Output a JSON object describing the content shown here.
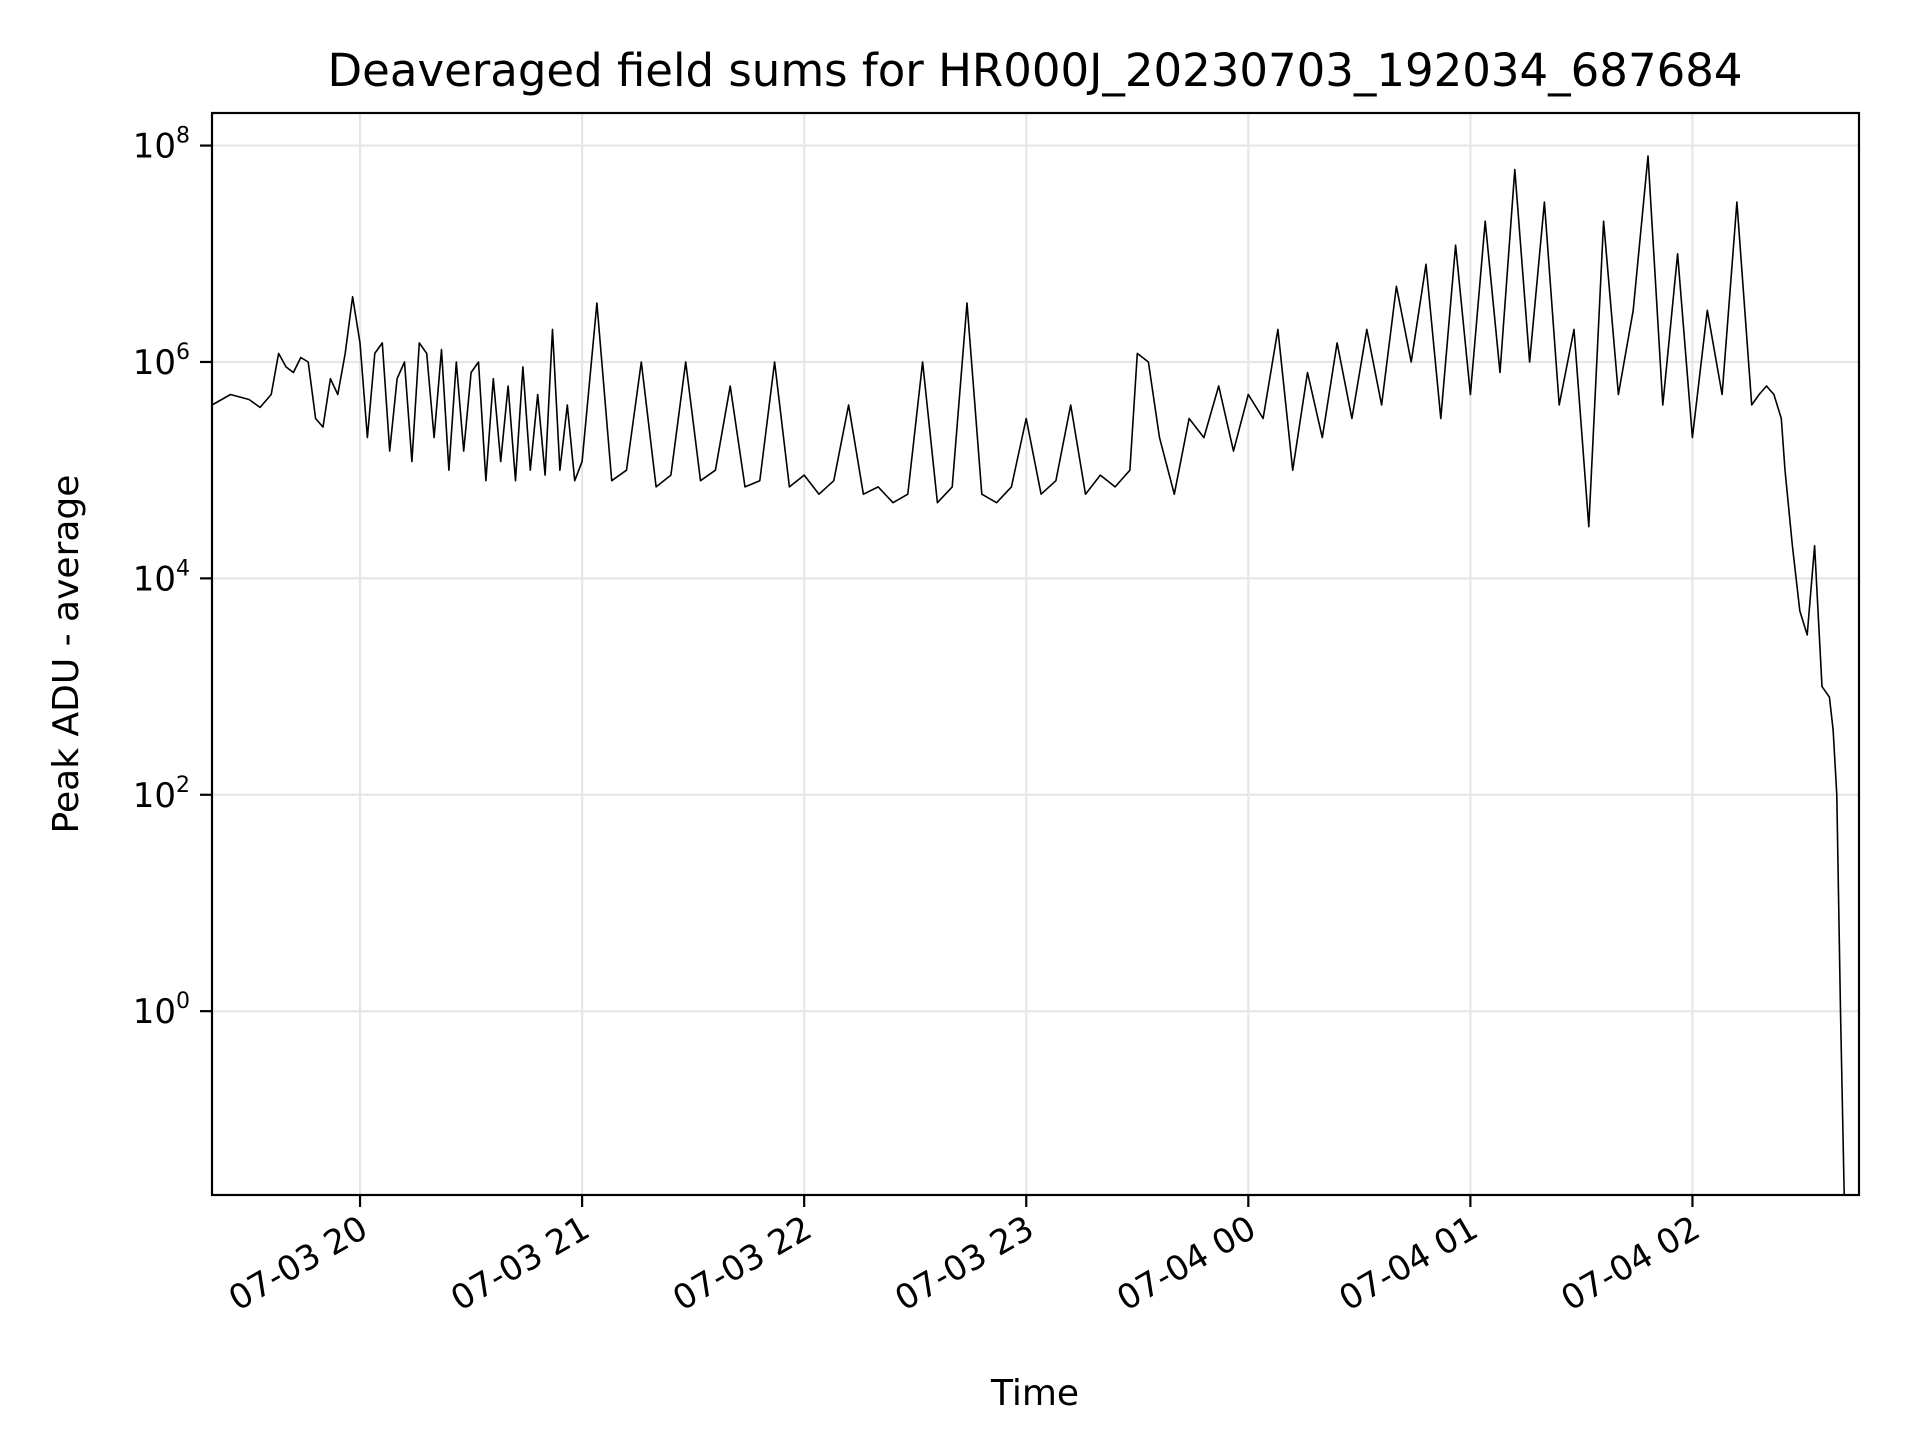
{
  "chart_data": {
    "type": "line",
    "title": "Deaveraged field sums for HR000J_20230703_192034_687684",
    "xlabel": "Time",
    "ylabel": "Peak ADU - average",
    "yscale": "log",
    "grid": true,
    "line_color": "#000000",
    "xlim": [
      "2023-07-03 19:20",
      "2023-07-04 02:45"
    ],
    "ylim": [
      0.02,
      200000000
    ],
    "x_ticks": [
      {
        "label": "07-03 20",
        "value": "2023-07-03 20:00"
      },
      {
        "label": "07-03 21",
        "value": "2023-07-03 21:00"
      },
      {
        "label": "07-03 22",
        "value": "2023-07-03 22:00"
      },
      {
        "label": "07-03 23",
        "value": "2023-07-03 23:00"
      },
      {
        "label": "07-04 00",
        "value": "2023-07-04 00:00"
      },
      {
        "label": "07-04 01",
        "value": "2023-07-04 01:00"
      },
      {
        "label": "07-04 02",
        "value": "2023-07-04 02:00"
      }
    ],
    "y_ticks": [
      {
        "base": "10",
        "exp": "0",
        "value": 1
      },
      {
        "base": "10",
        "exp": "2",
        "value": 100
      },
      {
        "base": "10",
        "exp": "4",
        "value": 10000
      },
      {
        "base": "10",
        "exp": "6",
        "value": 1000000
      },
      {
        "base": "10",
        "exp": "8",
        "value": 100000000
      }
    ],
    "series": [
      {
        "x": [
          "2023-07-03 19:20",
          "2023-07-03 19:25",
          "2023-07-03 19:30",
          "2023-07-03 19:33",
          "2023-07-03 19:36",
          "2023-07-03 19:38",
          "2023-07-03 19:40",
          "2023-07-03 19:42",
          "2023-07-03 19:44",
          "2023-07-03 19:46",
          "2023-07-03 19:48",
          "2023-07-03 19:50",
          "2023-07-03 19:52",
          "2023-07-03 19:54",
          "2023-07-03 19:56",
          "2023-07-03 19:58",
          "2023-07-03 20:00",
          "2023-07-03 20:02",
          "2023-07-03 20:04",
          "2023-07-03 20:06",
          "2023-07-03 20:08",
          "2023-07-03 20:10",
          "2023-07-03 20:12",
          "2023-07-03 20:14",
          "2023-07-03 20:16",
          "2023-07-03 20:18",
          "2023-07-03 20:20",
          "2023-07-03 20:22",
          "2023-07-03 20:24",
          "2023-07-03 20:26",
          "2023-07-03 20:28",
          "2023-07-03 20:30",
          "2023-07-03 20:32",
          "2023-07-03 20:34",
          "2023-07-03 20:36",
          "2023-07-03 20:38",
          "2023-07-03 20:40",
          "2023-07-03 20:42",
          "2023-07-03 20:44",
          "2023-07-03 20:46",
          "2023-07-03 20:48",
          "2023-07-03 20:50",
          "2023-07-03 20:52",
          "2023-07-03 20:54",
          "2023-07-03 20:56",
          "2023-07-03 20:58",
          "2023-07-03 21:00",
          "2023-07-03 21:04",
          "2023-07-03 21:08",
          "2023-07-03 21:12",
          "2023-07-03 21:16",
          "2023-07-03 21:20",
          "2023-07-03 21:24",
          "2023-07-03 21:28",
          "2023-07-03 21:32",
          "2023-07-03 21:36",
          "2023-07-03 21:40",
          "2023-07-03 21:44",
          "2023-07-03 21:48",
          "2023-07-03 21:52",
          "2023-07-03 21:56",
          "2023-07-03 22:00",
          "2023-07-03 22:04",
          "2023-07-03 22:08",
          "2023-07-03 22:12",
          "2023-07-03 22:16",
          "2023-07-03 22:20",
          "2023-07-03 22:24",
          "2023-07-03 22:28",
          "2023-07-03 22:32",
          "2023-07-03 22:36",
          "2023-07-03 22:40",
          "2023-07-03 22:44",
          "2023-07-03 22:48",
          "2023-07-03 22:52",
          "2023-07-03 22:56",
          "2023-07-03 23:00",
          "2023-07-03 23:04",
          "2023-07-03 23:08",
          "2023-07-03 23:12",
          "2023-07-03 23:16",
          "2023-07-03 23:20",
          "2023-07-03 23:24",
          "2023-07-03 23:28",
          "2023-07-03 23:30",
          "2023-07-03 23:33",
          "2023-07-03 23:36",
          "2023-07-03 23:40",
          "2023-07-03 23:44",
          "2023-07-03 23:48",
          "2023-07-03 23:52",
          "2023-07-03 23:56",
          "2023-07-04 00:00",
          "2023-07-04 00:04",
          "2023-07-04 00:08",
          "2023-07-04 00:12",
          "2023-07-04 00:16",
          "2023-07-04 00:20",
          "2023-07-04 00:24",
          "2023-07-04 00:28",
          "2023-07-04 00:32",
          "2023-07-04 00:36",
          "2023-07-04 00:40",
          "2023-07-04 00:44",
          "2023-07-04 00:48",
          "2023-07-04 00:52",
          "2023-07-04 00:56",
          "2023-07-04 01:00",
          "2023-07-04 01:04",
          "2023-07-04 01:08",
          "2023-07-04 01:12",
          "2023-07-04 01:16",
          "2023-07-04 01:20",
          "2023-07-04 01:24",
          "2023-07-04 01:28",
          "2023-07-04 01:32",
          "2023-07-04 01:36",
          "2023-07-04 01:40",
          "2023-07-04 01:44",
          "2023-07-04 01:48",
          "2023-07-04 01:52",
          "2023-07-04 01:56",
          "2023-07-04 02:00",
          "2023-07-04 02:04",
          "2023-07-04 02:08",
          "2023-07-04 02:12",
          "2023-07-04 02:16",
          "2023-07-04 02:18",
          "2023-07-04 02:20",
          "2023-07-04 02:22",
          "2023-07-04 02:24",
          "2023-07-04 02:25",
          "2023-07-04 02:27",
          "2023-07-04 02:29",
          "2023-07-04 02:31",
          "2023-07-04 02:33",
          "2023-07-04 02:35",
          "2023-07-04 02:37",
          "2023-07-04 02:38",
          "2023-07-04 02:39",
          "2023-07-04 02:40",
          "2023-07-04 02:41"
        ],
        "y": [
          400000,
          500000,
          450000,
          380000,
          500000,
          1200000,
          900000,
          800000,
          1100000,
          1000000,
          300000,
          250000,
          700000,
          500000,
          1200000,
          4000000,
          1500000,
          200000,
          1200000,
          1500000,
          150000,
          700000,
          1000000,
          120000,
          1500000,
          1200000,
          200000,
          1300000,
          100000,
          1000000,
          150000,
          800000,
          1000000,
          80000,
          700000,
          120000,
          600000,
          80000,
          900000,
          100000,
          500000,
          90000,
          2000000,
          100000,
          400000,
          80000,
          120000,
          3500000,
          80000,
          100000,
          1000000,
          70000,
          90000,
          1000000,
          80000,
          100000,
          600000,
          70000,
          80000,
          1000000,
          70000,
          90000,
          60000,
          80000,
          400000,
          60000,
          70000,
          50000,
          60000,
          1000000,
          50000,
          70000,
          3500000,
          60000,
          50000,
          70000,
          300000,
          60000,
          80000,
          400000,
          60000,
          90000,
          70000,
          100000,
          1200000,
          1000000,
          200000,
          60000,
          300000,
          200000,
          600000,
          150000,
          500000,
          300000,
          2000000,
          100000,
          800000,
          200000,
          1500000,
          300000,
          2000000,
          400000,
          5000000,
          1000000,
          8000000,
          300000,
          12000000,
          500000,
          20000000,
          800000,
          60000000,
          1000000,
          30000000,
          400000,
          2000000,
          30000,
          20000000,
          500000,
          3000000,
          80000000,
          400000,
          10000000,
          200000,
          3000000,
          500000,
          30000000,
          400000,
          500000,
          600000,
          500000,
          300000,
          100000,
          20000,
          5000,
          3000,
          20000,
          1000,
          800,
          400,
          100,
          1,
          0.02
        ]
      }
    ]
  }
}
